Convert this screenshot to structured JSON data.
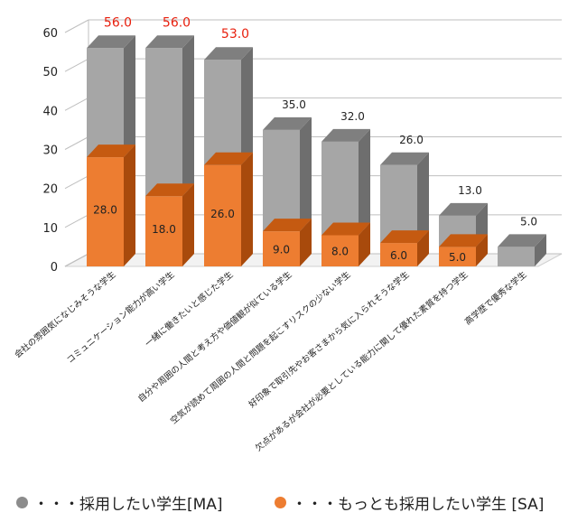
{
  "chart_data": {
    "type": "bar",
    "stacked_3d": true,
    "categories": [
      "会社の雰囲気になじみそうな学生",
      "コミュニケーション能力が高い学生",
      "一緒に働きたいと感じた学生",
      "自分や周囲の人間と考え方や価値観が似ている学生",
      "空気が読めて周囲の人間と問題を起こすリスクの少ない学生",
      "好印象で取引先やお客さまから気に入られそうな学生",
      "欠点があるが会社が必要としている能力に関して優れた素質を持つ学生",
      "高学歴で優秀な学生"
    ],
    "series": [
      {
        "name": "・・・採用したい学生[MA]",
        "values": [
          56.0,
          56.0,
          53.0,
          35.0,
          32.0,
          26.0,
          13.0,
          5.0
        ],
        "color": "#A6A6A6"
      },
      {
        "name": "・・・もっとも採用したい学生 [SA]",
        "values": [
          28.0,
          18.0,
          26.0,
          9.0,
          8.0,
          6.0,
          5.0,
          null
        ],
        "color": "#ED7D31"
      }
    ],
    "total_labels": [
      "56.0",
      "56.0",
      "53.0",
      "35.0",
      "32.0",
      "26.0",
      "13.0",
      "5.0"
    ],
    "inner_labels": [
      "28.0",
      "18.0",
      "26.0",
      "9.0",
      "8.0",
      "6.0",
      "5.0",
      ""
    ],
    "highlight_color": "#E8200E",
    "highlight_count": 3,
    "yticks": [
      "0",
      "10",
      "20",
      "30",
      "40",
      "50",
      "60"
    ],
    "ylim": [
      0,
      60
    ],
    "grid": true,
    "legend_position": "bottom"
  },
  "legend": {
    "ma_label": "・・・採用したい学生[MA]",
    "sa_label": "・・・もっとも採用したい学生 [SA]",
    "ma_color": "#8C8C8C",
    "sa_color": "#ED7D31"
  }
}
